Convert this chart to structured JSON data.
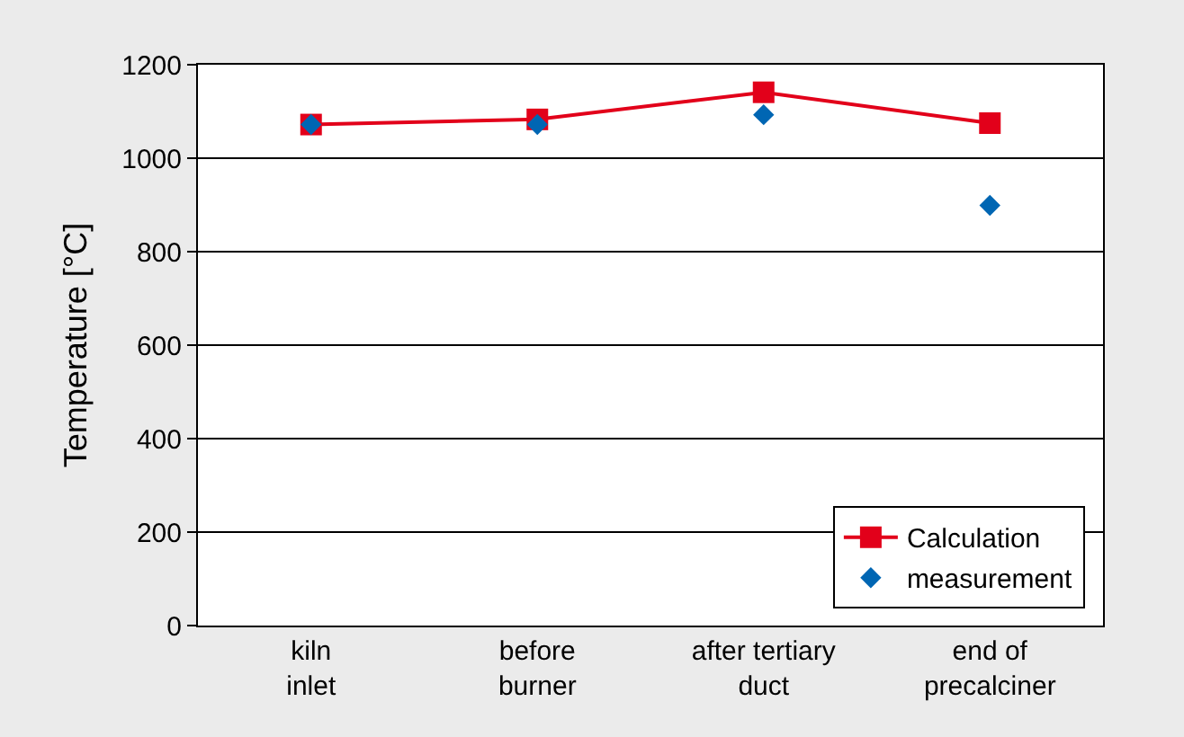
{
  "chart_data": {
    "type": "line",
    "ylabel": "Temperature [°C]",
    "categories": [
      "kiln\ninlet",
      "before\nburner",
      "after tertiary\nduct",
      "end of\nprecalciner"
    ],
    "ylim": [
      0,
      1200
    ],
    "yticks": [
      0,
      200,
      400,
      600,
      800,
      1000,
      1200
    ],
    "grid": "y",
    "legend": "bottom right",
    "series": [
      {
        "name": "Calculation",
        "type": "line",
        "marker": "square",
        "color": "#e2001a",
        "values": [
          1072,
          1083,
          1141,
          1075
        ]
      },
      {
        "name": "measurement",
        "type": "scatter",
        "marker": "diamond",
        "color": "#0066b3",
        "values": [
          1072,
          1072,
          1093,
          899
        ]
      }
    ]
  }
}
